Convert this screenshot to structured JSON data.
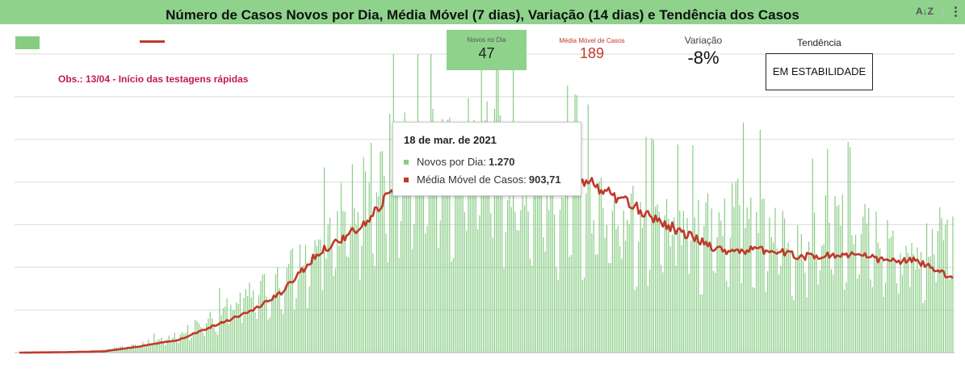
{
  "title": "Número de Casos Novos por Dia, Média Móvel (7 dias), Variação (14 dias) e Tendência dos Casos",
  "toolbar": {
    "sort_icon": "az-sort-icon",
    "menu_icon": "more-vert-icon"
  },
  "kpis": {
    "novos": {
      "label": "Novos no Dia",
      "value": "47"
    },
    "media": {
      "label": "Média Móvel de Casos",
      "value": "189"
    },
    "variacao": {
      "label": "Variação",
      "value": "-8%"
    },
    "tendencia": {
      "label": "Tendência",
      "value": "EM ESTABILIDADE"
    }
  },
  "annotation": "Obs.: 13/04 - Início das testagens rápidas",
  "tooltip": {
    "date": "18 de mar. de 2021",
    "rows": [
      {
        "name": "Novos por Dia",
        "value": "1.270"
      },
      {
        "name": "Média Móvel de Casos",
        "value": "903,71"
      }
    ]
  },
  "colors": {
    "bars": "#88cc84",
    "line": "#c0392b",
    "header": "#8ed28c",
    "annotation": "#c2185b",
    "grid": "#d9d9d9"
  },
  "chart_data": {
    "type": "bar",
    "combo": "bar + line",
    "series": [
      {
        "name": "Novos por Dia",
        "kind": "bar"
      },
      {
        "name": "Média Móvel de Casos",
        "kind": "line"
      }
    ],
    "grid": true,
    "ylim": [
      0,
      1400
    ],
    "n_points": 500,
    "bar_anchors": [
      [
        0,
        0
      ],
      [
        25,
        3
      ],
      [
        45,
        12
      ],
      [
        65,
        40
      ],
      [
        85,
        80
      ],
      [
        105,
        170
      ],
      [
        125,
        260
      ],
      [
        140,
        330
      ],
      [
        160,
        480
      ],
      [
        185,
        760
      ],
      [
        200,
        900
      ],
      [
        215,
        1050
      ],
      [
        225,
        900
      ],
      [
        245,
        950
      ],
      [
        265,
        820
      ],
      [
        300,
        720
      ],
      [
        320,
        620
      ],
      [
        355,
        570
      ],
      [
        390,
        650
      ],
      [
        420,
        520
      ],
      [
        440,
        600
      ],
      [
        470,
        450
      ],
      [
        490,
        520
      ],
      [
        520,
        560
      ],
      [
        545,
        500
      ],
      [
        565,
        650
      ],
      [
        585,
        700
      ],
      [
        610,
        760
      ],
      [
        630,
        990
      ],
      [
        660,
        1180
      ],
      [
        680,
        1120
      ],
      [
        700,
        1200
      ],
      [
        720,
        1050
      ],
      [
        750,
        1150
      ],
      [
        770,
        1140
      ],
      [
        800,
        1000
      ],
      [
        820,
        810
      ],
      [
        850,
        720
      ],
      [
        885,
        520
      ],
      [
        915,
        350
      ],
      [
        950,
        190
      ],
      [
        975,
        150
      ],
      [
        995,
        90
      ],
      [
        1015,
        80
      ],
      [
        1030,
        90
      ],
      [
        1048,
        120
      ],
      [
        1068,
        95
      ],
      [
        1085,
        120
      ],
      [
        1100,
        260
      ],
      [
        1115,
        160
      ],
      [
        1150,
        130
      ]
    ],
    "line_anchors": [
      [
        0,
        0
      ],
      [
        25,
        2
      ],
      [
        45,
        6
      ],
      [
        65,
        30
      ],
      [
        85,
        60
      ],
      [
        105,
        130
      ],
      [
        125,
        200
      ],
      [
        140,
        280
      ],
      [
        160,
        470
      ],
      [
        185,
        600
      ],
      [
        200,
        780
      ],
      [
        215,
        830
      ],
      [
        230,
        880
      ],
      [
        245,
        870
      ],
      [
        265,
        860
      ],
      [
        285,
        870
      ],
      [
        300,
        820
      ],
      [
        325,
        700
      ],
      [
        355,
        560
      ],
      [
        375,
        480
      ],
      [
        400,
        480
      ],
      [
        420,
        450
      ],
      [
        445,
        460
      ],
      [
        465,
        430
      ],
      [
        480,
        430
      ],
      [
        500,
        340
      ],
      [
        515,
        450
      ],
      [
        530,
        520
      ],
      [
        545,
        420
      ],
      [
        565,
        340
      ],
      [
        585,
        380
      ],
      [
        605,
        470
      ],
      [
        625,
        420
      ],
      [
        645,
        390
      ],
      [
        670,
        420
      ],
      [
        695,
        520
      ],
      [
        715,
        620
      ],
      [
        730,
        760
      ],
      [
        745,
        760
      ],
      [
        760,
        910
      ],
      [
        775,
        1070
      ],
      [
        790,
        990
      ],
      [
        808,
        1020
      ],
      [
        825,
        900
      ],
      [
        840,
        980
      ],
      [
        860,
        890
      ],
      [
        880,
        680
      ],
      [
        905,
        620
      ],
      [
        930,
        450
      ],
      [
        950,
        400
      ],
      [
        975,
        250
      ],
      [
        995,
        200
      ],
      [
        1015,
        170
      ],
      [
        1040,
        140
      ],
      [
        1065,
        130
      ],
      [
        1085,
        70
      ],
      [
        1105,
        55
      ],
      [
        1125,
        65
      ],
      [
        1145,
        60
      ],
      [
        1152,
        200
      ],
      [
        1162,
        255
      ],
      [
        1170,
        190
      ],
      [
        1180,
        140
      ]
    ],
    "hover_index": 730,
    "xlabel": "",
    "ylabel": ""
  }
}
